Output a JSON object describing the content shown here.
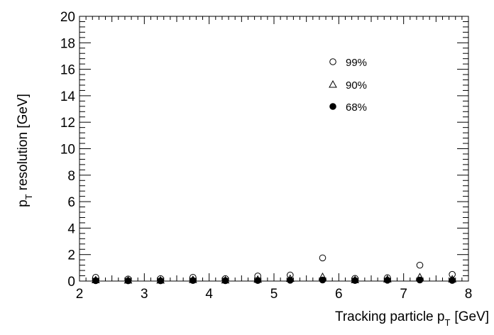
{
  "chart_data": {
    "type": "scatter",
    "xlabel": "Tracking particle p",
    "xlabel_sub": "T",
    "xlabel_unit": "[GeV]",
    "ylabel": "p",
    "ylabel_sub": "T",
    "ylabel_rest": "resolution [GeV]",
    "xlim": [
      2,
      8
    ],
    "ylim": [
      0,
      20
    ],
    "x_major_ticks": [
      2,
      3,
      4,
      5,
      6,
      7,
      8
    ],
    "y_major_ticks": [
      0,
      2,
      4,
      6,
      8,
      10,
      12,
      14,
      16,
      18,
      20
    ],
    "x_tick_labels": [
      "2",
      "3",
      "4",
      "5",
      "6",
      "7",
      "8"
    ],
    "y_tick_labels": [
      "0",
      "2",
      "4",
      "6",
      "8",
      "10",
      "12",
      "14",
      "16",
      "18",
      "20"
    ],
    "grid": false,
    "legend_position": "top-right",
    "series": [
      {
        "name": "99%",
        "marker": "open-circle",
        "x": [
          2.25,
          2.75,
          3.25,
          3.75,
          4.25,
          4.75,
          5.25,
          5.75,
          6.25,
          6.75,
          7.25,
          7.75
        ],
        "y": [
          0.28,
          0.15,
          0.18,
          0.28,
          0.18,
          0.38,
          0.45,
          1.75,
          0.2,
          0.25,
          1.2,
          0.5
        ]
      },
      {
        "name": "90%",
        "marker": "open-triangle",
        "x": [
          2.25,
          2.75,
          3.25,
          3.75,
          4.25,
          4.75,
          5.25,
          5.75,
          6.25,
          6.75,
          7.25,
          7.75
        ],
        "y": [
          0.08,
          0.06,
          0.06,
          0.1,
          0.07,
          0.12,
          0.18,
          0.32,
          0.09,
          0.14,
          0.3,
          0.14
        ]
      },
      {
        "name": "68%",
        "marker": "filled-circle",
        "x": [
          2.25,
          2.75,
          3.25,
          3.75,
          4.25,
          4.75,
          5.25,
          5.75,
          6.25,
          6.75,
          7.25,
          7.75
        ],
        "y": [
          0.03,
          0.02,
          0.02,
          0.04,
          0.03,
          0.04,
          0.06,
          0.08,
          0.04,
          0.06,
          0.08,
          0.05
        ]
      }
    ]
  }
}
